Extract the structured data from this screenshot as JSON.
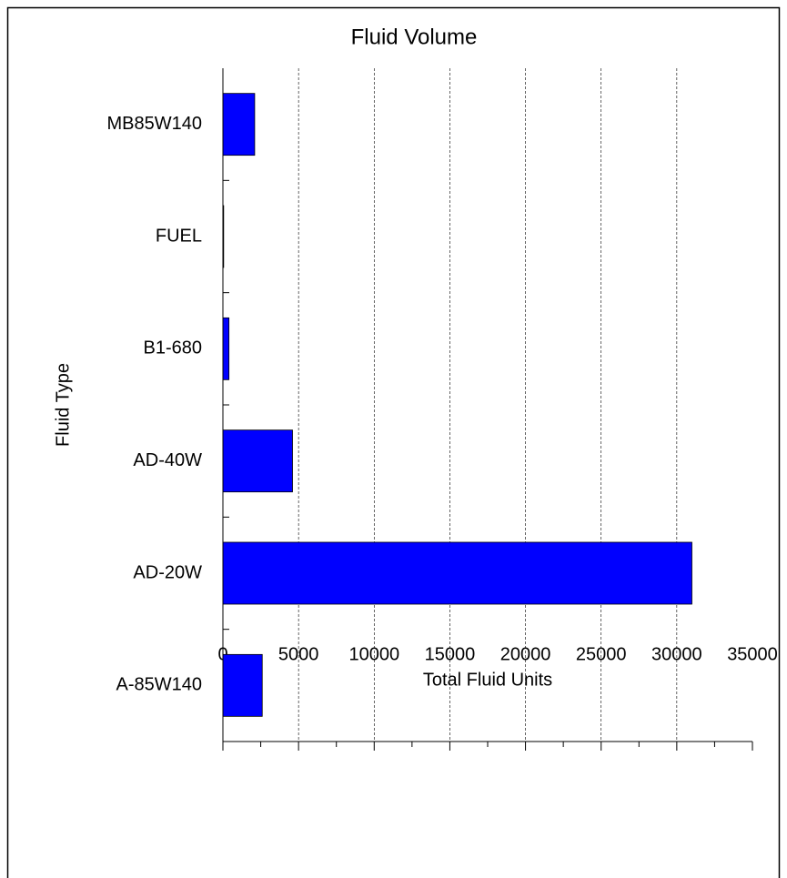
{
  "chart_data": {
    "type": "bar",
    "orientation": "horizontal",
    "title": "Fluid Volume",
    "xlabel": "Total Fluid Units",
    "ylabel": "Fluid Type",
    "categories": [
      "MB85W140",
      "FUEL",
      "B1-680",
      "AD-40W",
      "AD-20W",
      "A-85W140"
    ],
    "values": [
      2100,
      50,
      400,
      4600,
      31000,
      2600
    ],
    "color": "#0000ff",
    "xlim": [
      0,
      35000
    ],
    "xticks": [
      0,
      5000,
      10000,
      15000,
      20000,
      25000,
      30000,
      35000
    ],
    "grid": true
  }
}
